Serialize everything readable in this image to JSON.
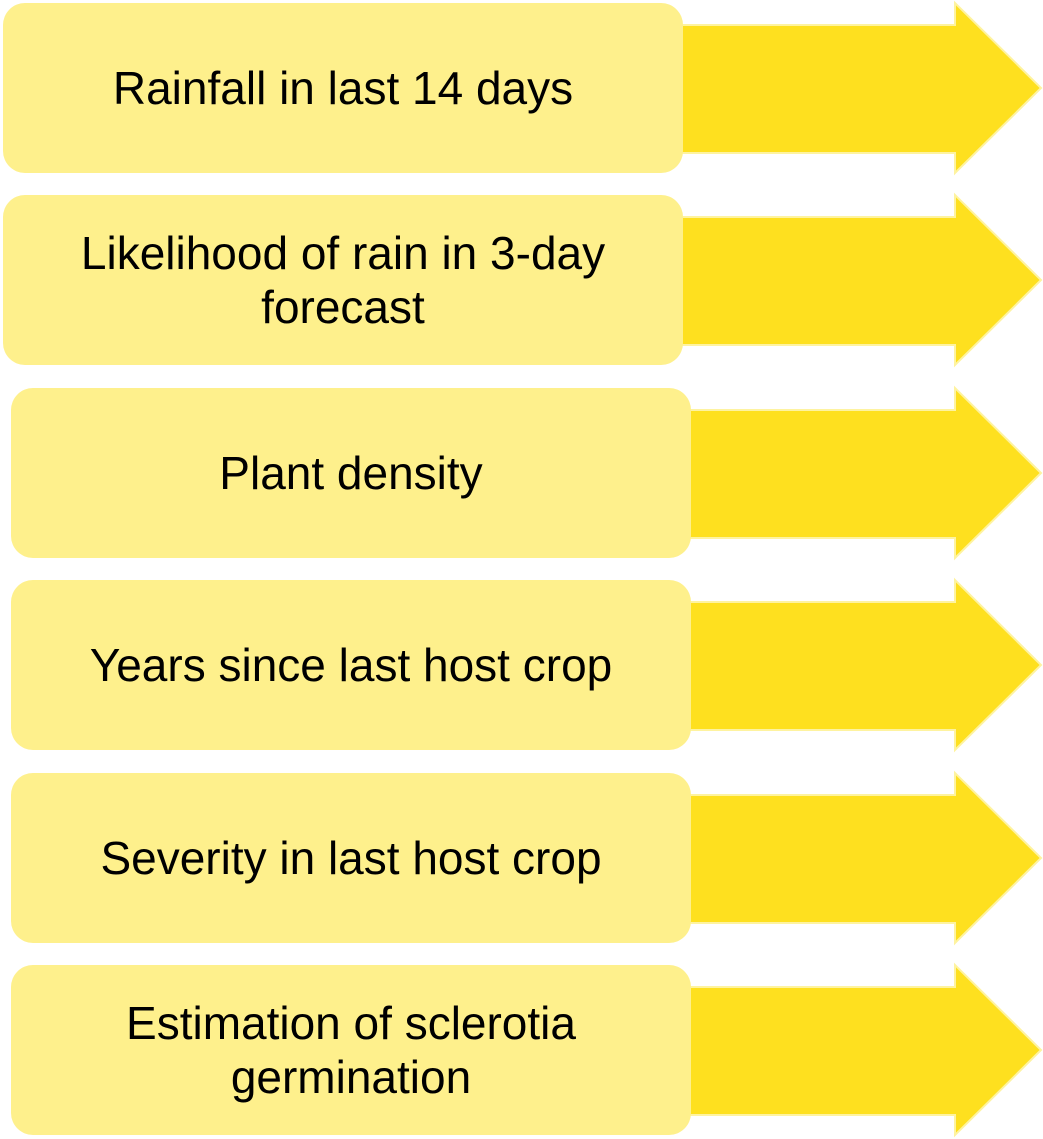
{
  "items": [
    {
      "label": "Rainfall in last 14 days"
    },
    {
      "label": "Likelihood of rain in 3-day forecast"
    },
    {
      "label": "Plant density"
    },
    {
      "label": "Years since last host crop"
    },
    {
      "label": "Severity in last host crop"
    },
    {
      "label": "Estimation of sclerotia germination"
    }
  ]
}
